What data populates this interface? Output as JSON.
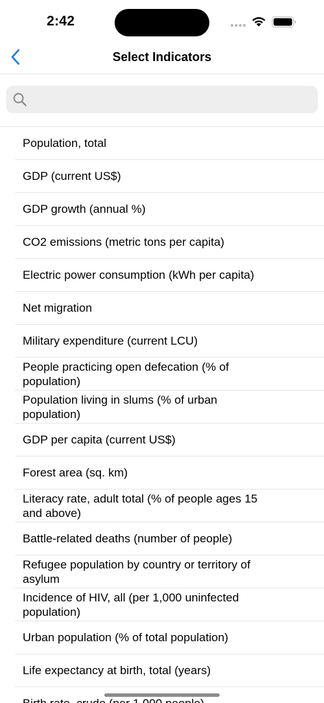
{
  "status_bar": {
    "time": "2:42"
  },
  "colors": {
    "accent": "#1a7cf5",
    "search_background": "#eeeeef",
    "separator": "#e6e6e6"
  },
  "icons": {
    "back": "chevron-left-icon",
    "search": "magnifying-glass-icon",
    "wifi": "wifi-icon",
    "battery": "battery-icon"
  },
  "nav": {
    "title": "Select Indicators"
  },
  "search": {
    "value": "",
    "placeholder": ""
  },
  "indicators": [
    "Population, total",
    "GDP (current US$)",
    "GDP growth (annual %)",
    "CO2 emissions (metric tons per capita)",
    "Electric power consumption (kWh per capita)",
    "Net migration",
    "Military expenditure (current LCU)",
    "People practicing open defecation (% of population)",
    "Population living in slums (% of urban population)",
    "GDP per capita (current US$)",
    "Forest area (sq. km)",
    "Literacy rate, adult total (% of people ages 15 and above)",
    "Battle-related deaths (number of people)",
    "Refugee population by country or territory of asylum",
    "Incidence of HIV, all (per 1,000 uninfected population)",
    "Urban population (% of total population)",
    "Life expectancy at birth, total (years)",
    "Birth rate, crude (per 1,000 people)"
  ]
}
